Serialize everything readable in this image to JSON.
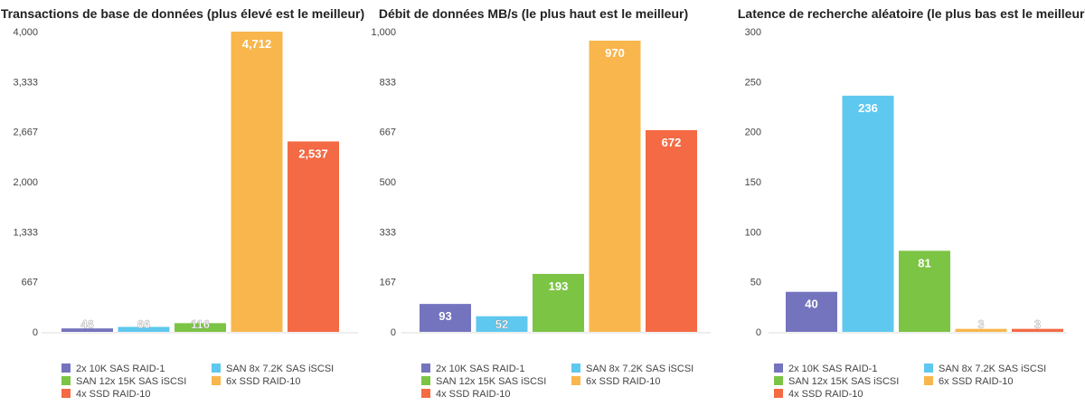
{
  "colors": [
    "#7474be",
    "#5ec8ef",
    "#7cc444",
    "#f8b64c",
    "#f46a44"
  ],
  "legend": [
    "2x 10K SAS RAID-1",
    "SAN 8x 7.2K SAS iSCSI",
    "SAN 12x 15K SAS iSCSI",
    "6x SSD RAID-10",
    "4x SSD RAID-10"
  ],
  "chart_data": [
    {
      "type": "bar",
      "title": "Transactions de base de données (plus élevé est le meilleur)",
      "categories": [
        "2x 10K SAS RAID-1",
        "SAN 8x 7.2K SAS iSCSI",
        "SAN 12x 15K SAS iSCSI",
        "6x SSD RAID-10",
        "4x SSD RAID-10"
      ],
      "values": [
        46,
        66,
        116,
        4712,
        2537
      ],
      "value_labels": [
        "46",
        "66",
        "116",
        "4,712",
        "2,537"
      ],
      "yticks": [
        "0",
        "667",
        "1,333",
        "2,000",
        "2,667",
        "3,333",
        "4,000"
      ],
      "ylim": [
        0,
        4000
      ],
      "legend_position": "bottom"
    },
    {
      "type": "bar",
      "title": "Débit de données MB/s (le plus haut est le meilleur)",
      "categories": [
        "2x 10K SAS RAID-1",
        "SAN 8x 7.2K SAS iSCSI",
        "SAN 12x 15K SAS iSCSI",
        "6x SSD RAID-10",
        "4x SSD RAID-10"
      ],
      "values": [
        93,
        52,
        193,
        970,
        672
      ],
      "value_labels": [
        "93",
        "52",
        "193",
        "970",
        "672"
      ],
      "yticks": [
        "0",
        "167",
        "333",
        "500",
        "667",
        "833",
        "1,000"
      ],
      "ylim": [
        0,
        1000
      ],
      "legend_position": "bottom"
    },
    {
      "type": "bar",
      "title": "Latence de recherche aléatoire (le plus bas est le meilleur)",
      "categories": [
        "2x 10K SAS RAID-1",
        "SAN 8x 7.2K SAS iSCSI",
        "SAN 12x 15K SAS iSCSI",
        "6x SSD RAID-10",
        "4x SSD RAID-10"
      ],
      "values": [
        40,
        236,
        81,
        3,
        3
      ],
      "value_labels": [
        "40",
        "236",
        "81",
        "3",
        "3"
      ],
      "yticks": [
        "0",
        "50",
        "100",
        "150",
        "200",
        "250",
        "300"
      ],
      "ylim": [
        0,
        300
      ],
      "legend_position": "bottom"
    }
  ]
}
